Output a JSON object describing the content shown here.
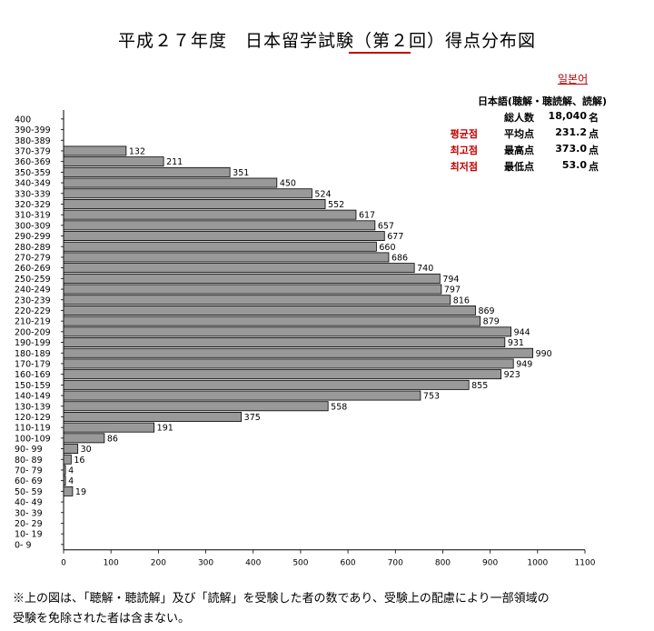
{
  "header": {
    "title": "平成２７年度　日本留学試験（第２回）得点分布図",
    "korean_link": "일본어",
    "subject": "日本語(聴解・聴読解、読解)"
  },
  "stats": [
    {
      "kr": "",
      "jp": "総人数",
      "value": "18,040",
      "unit": "名"
    },
    {
      "kr": "평균점",
      "jp": "平均点",
      "value": "231.2",
      "unit": "点"
    },
    {
      "kr": "최고점",
      "jp": "最高点",
      "value": "373.0",
      "unit": "点"
    },
    {
      "kr": "최저점",
      "jp": "最低点",
      "value": "53.0",
      "unit": "点"
    }
  ],
  "colors": {
    "bar": "#999999",
    "bar_border": "#000000",
    "accent": "#c00000"
  },
  "chart_data": {
    "type": "bar",
    "orientation": "horizontal",
    "categories": [
      "400",
      "390-399",
      "380-389",
      "370-379",
      "360-369",
      "350-359",
      "340-349",
      "330-339",
      "320-329",
      "310-319",
      "300-309",
      "290-299",
      "280-289",
      "270-279",
      "260-269",
      "250-259",
      "240-249",
      "230-239",
      "220-229",
      "210-219",
      "200-209",
      "190-199",
      "180-189",
      "170-179",
      "160-169",
      "150-159",
      "140-149",
      "130-139",
      "120-129",
      "110-119",
      "100-109",
      "90- 99",
      "80- 89",
      "70- 79",
      "60- 69",
      "50- 59",
      "40- 49",
      "30- 39",
      "20- 29",
      "10- 19",
      "0- 9"
    ],
    "values": [
      null,
      null,
      null,
      132,
      211,
      351,
      450,
      524,
      552,
      617,
      657,
      677,
      660,
      686,
      740,
      794,
      797,
      816,
      869,
      879,
      944,
      931,
      990,
      949,
      923,
      855,
      753,
      558,
      375,
      191,
      86,
      30,
      16,
      4,
      4,
      19,
      null,
      null,
      null,
      null,
      null
    ],
    "xlim": [
      0,
      1100
    ],
    "xticks": [
      0,
      100,
      200,
      300,
      400,
      500,
      600,
      700,
      800,
      900,
      1000,
      1100
    ],
    "grid": false
  },
  "footnote": {
    "line1": "※上の図は、「聴解・聴読解」及び「読解」を受験した者の数であり、受験上の配慮により一部領域の",
    "line2": "受験を免除された者は含まない。"
  }
}
